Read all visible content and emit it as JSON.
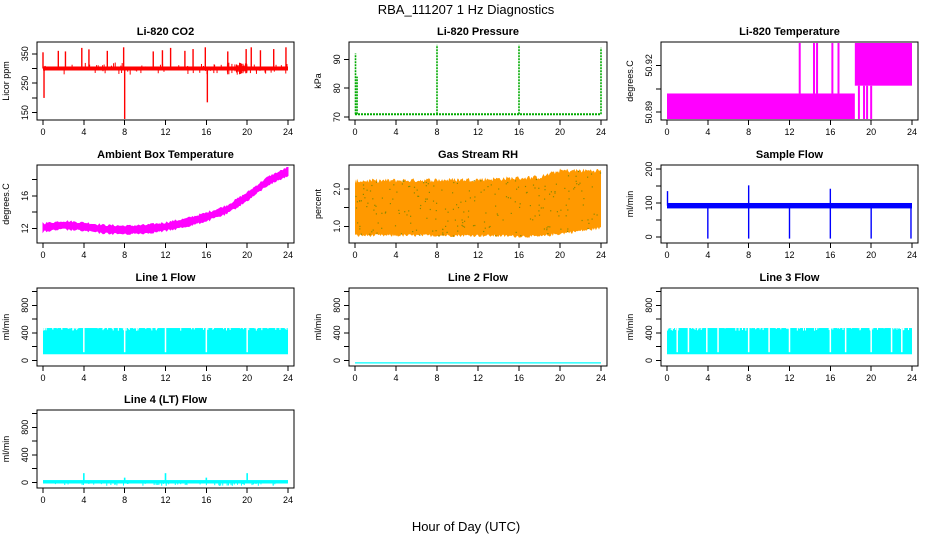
{
  "figure": {
    "title": "RBA_111207  1 Hz Diagnostics",
    "xlabel": "Hour of Day (UTC)"
  },
  "chart_data": [
    {
      "type": "line",
      "title": "Li-820 CO2",
      "ylabel": "Licor ppm",
      "color": "#ff0000",
      "xlim": [
        0,
        24
      ],
      "ylim": [
        125,
        390
      ],
      "yticks": [
        150,
        250,
        350
      ],
      "yticks_minor": [
        200,
        300
      ],
      "series": [
        {
          "name": "baseline",
          "x": [
            0,
            24
          ],
          "y": [
            300,
            300
          ]
        },
        {
          "name": "spikes",
          "x": [
            0,
            1.5,
            2.2,
            3.8,
            4.5,
            6.3,
            7.9,
            8.0,
            10.8,
            11.7,
            12.5,
            13.9,
            14.7,
            15.9,
            16.1,
            18.1,
            19.9,
            20.4,
            21.3,
            22.6,
            23.8
          ],
          "y": [
            355,
            360,
            358,
            370,
            365,
            360,
            372,
            120,
            358,
            362,
            370,
            360,
            366,
            372,
            185,
            358,
            366,
            372,
            362,
            366,
            372
          ]
        }
      ],
      "annotations": [
        "dip to about 200 near hour 0.1",
        "dense noise band between hours 18 and 20"
      ]
    },
    {
      "type": "line",
      "title": "Li-820 Pressure",
      "ylabel": "kPa",
      "color": "#00aa00",
      "xlim": [
        0,
        24
      ],
      "ylim": [
        69,
        96
      ],
      "yticks": [
        70,
        80,
        90
      ],
      "series": [
        {
          "name": "baseline",
          "x": [
            0,
            24
          ],
          "y": [
            71,
            71
          ]
        },
        {
          "name": "spikes",
          "x": [
            0.05,
            0.2,
            8.0,
            16.0,
            24.0
          ],
          "y": [
            92,
            84,
            95,
            95,
            94
          ]
        }
      ]
    },
    {
      "type": "area",
      "title": "Li-820 Temperature",
      "ylabel": "degrees.C",
      "color": "#ff00ff",
      "xlim": [
        0,
        24
      ],
      "ylim": [
        50.885,
        50.935
      ],
      "yticks": [
        50.89,
        50.92
      ],
      "yticks_minor": [
        50.905
      ],
      "series": [
        {
          "name": "low-band",
          "x": [
            0,
            18.4
          ],
          "y_low": [
            50.883,
            50.883
          ],
          "y_high": [
            50.902,
            50.902
          ]
        },
        {
          "name": "high-band",
          "x": [
            18.4,
            24
          ],
          "y_low": [
            50.907,
            50.907
          ],
          "y_high": [
            50.935,
            50.935
          ]
        },
        {
          "name": "spikes-up",
          "x": [
            13.0,
            14.4,
            14.7,
            16.2,
            16.8
          ],
          "y": [
            50.935,
            50.935,
            50.935,
            50.935,
            50.935
          ]
        },
        {
          "name": "spikes-down",
          "x": [
            18.8,
            19.3,
            19.6,
            20.0
          ],
          "y": [
            50.883,
            50.883,
            50.883,
            50.883
          ]
        }
      ]
    },
    {
      "type": "area",
      "title": "Ambient Box Temperature",
      "ylabel": "degrees.C",
      "color": "#ff00ff",
      "xlim": [
        0,
        24
      ],
      "ylim": [
        10.2,
        19.8
      ],
      "yticks": [
        12,
        16
      ],
      "yticks_minor": [
        14,
        18
      ],
      "series": [
        {
          "name": "mean",
          "x": [
            0,
            2,
            4,
            6,
            8,
            10,
            12,
            14,
            16,
            18,
            20,
            22,
            24
          ],
          "y": [
            12.1,
            12.4,
            12.2,
            11.9,
            11.8,
            11.9,
            12.2,
            12.7,
            13.4,
            14.3,
            15.9,
            17.8,
            19.0
          ],
          "spread": 0.45
        }
      ]
    },
    {
      "type": "area",
      "title": "Gas Stream RH",
      "ylabel": "percent",
      "color": "#ff9900",
      "accent": "#888800",
      "xlim": [
        0,
        24
      ],
      "ylim": [
        0.55,
        2.65
      ],
      "yticks": [
        1.0,
        2.0
      ],
      "yticks_labels": [
        "1.0",
        "2.0"
      ],
      "yticks_minor": [
        1.5
      ],
      "series": [
        {
          "name": "low",
          "x": [
            0,
            6,
            12,
            18,
            20,
            24
          ],
          "y": [
            0.75,
            0.75,
            0.75,
            0.72,
            0.8,
            0.95
          ]
        },
        {
          "name": "high",
          "x": [
            0,
            6,
            12,
            18,
            20,
            24
          ],
          "y": [
            2.22,
            2.24,
            2.26,
            2.32,
            2.5,
            2.5
          ]
        }
      ]
    },
    {
      "type": "line",
      "title": "Sample Flow",
      "ylabel": "ml/min",
      "color": "#0000ff",
      "xlim": [
        0,
        24
      ],
      "ylim": [
        -18,
        212
      ],
      "yticks": [
        0,
        100,
        200
      ],
      "yticks_minor": [
        50,
        150
      ],
      "series": [
        {
          "name": "baseline",
          "x": [
            0,
            24
          ],
          "y": [
            92,
            92
          ],
          "spread": 8
        },
        {
          "name": "dips",
          "x": [
            4.0,
            8.0,
            12.0,
            16.0,
            20.0,
            23.9
          ],
          "y": [
            -5,
            -5,
            -5,
            -5,
            -5,
            -5
          ]
        },
        {
          "name": "spikes",
          "x": [
            0.05,
            8.0,
            16.0
          ],
          "y": [
            135,
            152,
            142
          ]
        }
      ]
    },
    {
      "type": "area",
      "title": "Line 1 Flow",
      "ylabel": "ml/min",
      "color": "#00ffff",
      "xlim": [
        0,
        24
      ],
      "ylim": [
        -80,
        1050
      ],
      "yticks": [
        0,
        400,
        800
      ],
      "yticks_minor": [
        200,
        600,
        1000
      ],
      "series": [
        {
          "name": "band",
          "x": [
            0,
            24
          ],
          "y_low": [
            90,
            90
          ],
          "y_high": [
            470,
            470
          ]
        },
        {
          "name": "gaps",
          "x": [
            4.0,
            8.0,
            12.0,
            16.0,
            20.0
          ],
          "y": [
            120,
            120,
            120,
            120,
            120
          ]
        }
      ]
    },
    {
      "type": "line",
      "title": "Line 2 Flow",
      "ylabel": "ml/min",
      "color": "#00ffff",
      "xlim": [
        0,
        24
      ],
      "ylim": [
        -80,
        1050
      ],
      "yticks": [
        0,
        400,
        800
      ],
      "yticks_minor": [
        200,
        600,
        1000
      ],
      "series": [
        {
          "name": "flat",
          "x": [
            0,
            24
          ],
          "y": [
            -35,
            -35
          ]
        }
      ]
    },
    {
      "type": "area",
      "title": "Line 3 Flow",
      "ylabel": "ml/min",
      "color": "#00ffff",
      "xlim": [
        0,
        24
      ],
      "ylim": [
        -80,
        1050
      ],
      "yticks": [
        0,
        400,
        800
      ],
      "yticks_minor": [
        200,
        600,
        1000
      ],
      "series": [
        {
          "name": "band",
          "x": [
            0,
            24
          ],
          "y_low": [
            90,
            90
          ],
          "y_high": [
            470,
            470
          ]
        },
        {
          "name": "gaps",
          "x": [
            1.0,
            2.1,
            3.9,
            5.0,
            8.0,
            10.0,
            12.0,
            16.0,
            17.5,
            20.0,
            22.0,
            23.0
          ],
          "y": [
            120,
            120,
            120,
            120,
            120,
            120,
            120,
            120,
            120,
            120,
            120,
            120
          ]
        }
      ]
    },
    {
      "type": "line",
      "title": "Line 4 (LT) Flow",
      "ylabel": "ml/min",
      "color": "#00ffff",
      "xlim": [
        0,
        24
      ],
      "ylim": [
        -80,
        1050
      ],
      "yticks": [
        0,
        400,
        800
      ],
      "yticks_minor": [
        200,
        600,
        1000
      ],
      "series": [
        {
          "name": "baseline",
          "x": [
            0,
            24
          ],
          "y": [
            10,
            10
          ],
          "spread": 25
        },
        {
          "name": "spikes",
          "x": [
            4.0,
            8.0,
            12.0,
            16.0,
            20.0
          ],
          "y": [
            135,
            70,
            135,
            70,
            135
          ]
        }
      ]
    }
  ]
}
